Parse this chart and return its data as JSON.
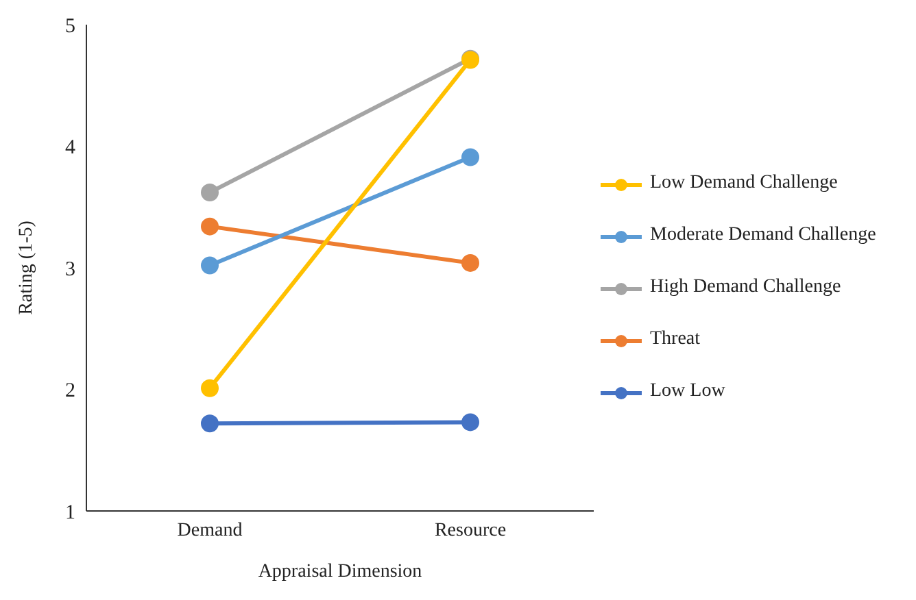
{
  "chart_data": {
    "type": "line",
    "xlabel": "Appraisal Dimension",
    "ylabel": "Rating (1-5)",
    "categories": [
      "Demand",
      "Resource"
    ],
    "series": [
      {
        "name": "Low Demand Challenge",
        "color": "#ffc000",
        "values": [
          2.01,
          4.71
        ]
      },
      {
        "name": "Moderate Demand Challenge",
        "color": "#5b9bd5",
        "values": [
          3.02,
          3.91
        ]
      },
      {
        "name": "High Demand Challenge",
        "color": "#a5a5a5",
        "values": [
          3.62,
          4.72
        ]
      },
      {
        "name": "Threat",
        "color": "#ed7d31",
        "values": [
          3.34,
          3.04
        ]
      },
      {
        "name": "Low Low",
        "color": "#4472c4",
        "values": [
          1.72,
          1.73
        ]
      }
    ],
    "ylim": [
      1,
      5
    ],
    "yticks": [
      1,
      2,
      3,
      4,
      5
    ],
    "grid": false,
    "legend": "right",
    "marker": "circle",
    "line_style": "solid"
  }
}
